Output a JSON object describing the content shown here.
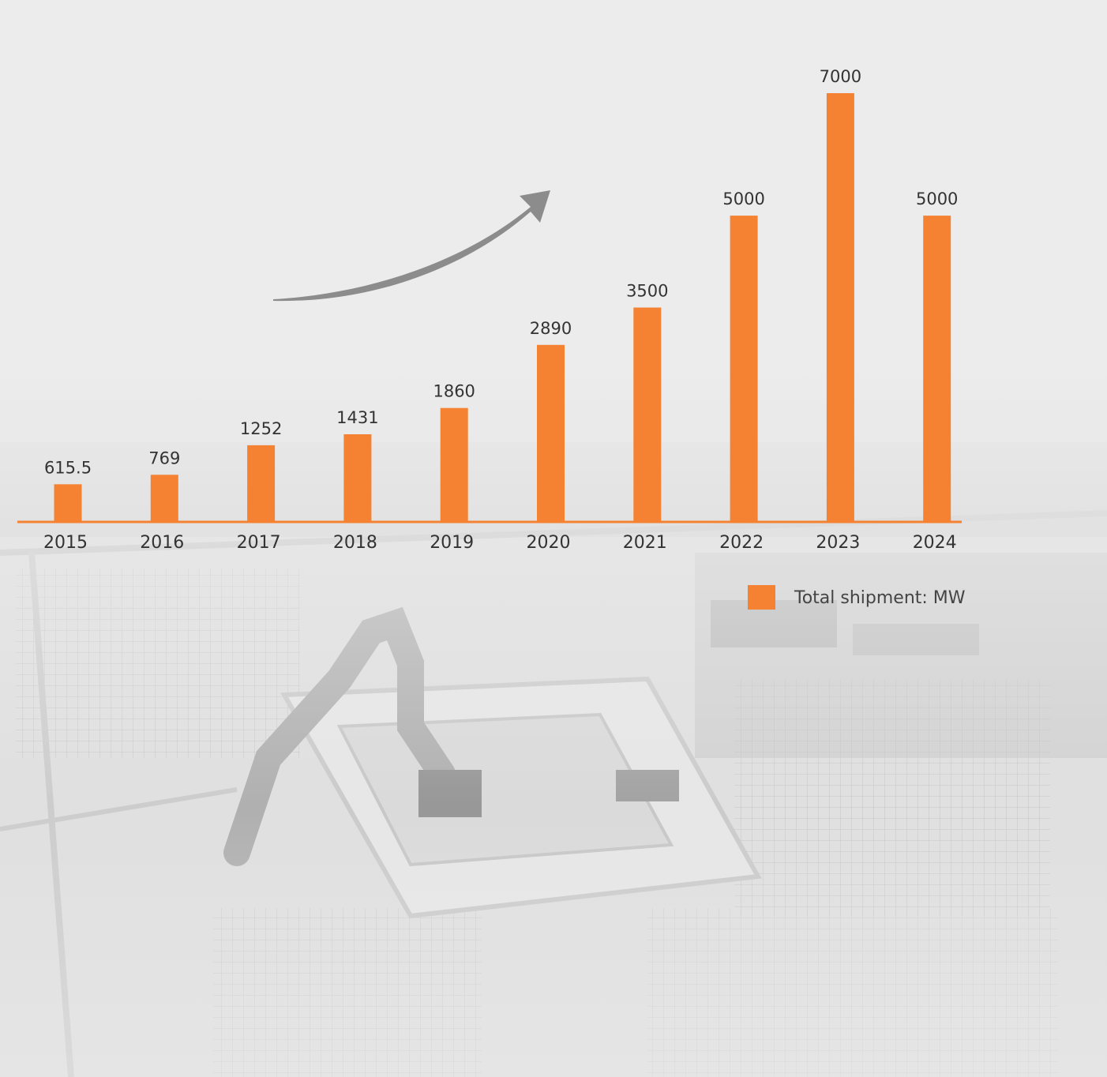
{
  "chart_data": {
    "type": "bar",
    "categories": [
      "2015",
      "2016",
      "2017",
      "2018",
      "2019",
      "2020",
      "2021",
      "2022",
      "2023",
      "2024"
    ],
    "series": [
      {
        "name": "Total shipment: MW",
        "values": [
          615.5,
          769,
          1252,
          1431,
          1860,
          2890,
          3500,
          5000,
          7000,
          5000
        ]
      }
    ],
    "data_labels": [
      "615.5",
      "769",
      "1252",
      "1431",
      "1860",
      "2890",
      "3500",
      "5000",
      "7000",
      "5000"
    ],
    "ylim": [
      0,
      7000
    ],
    "grid": false,
    "legend_position": "bottom-right",
    "trend_arrow": "up"
  },
  "colors": {
    "bar": "#f58232",
    "axis": "#f58232",
    "arrow": "#8c8c8c",
    "background": "#ececec"
  }
}
